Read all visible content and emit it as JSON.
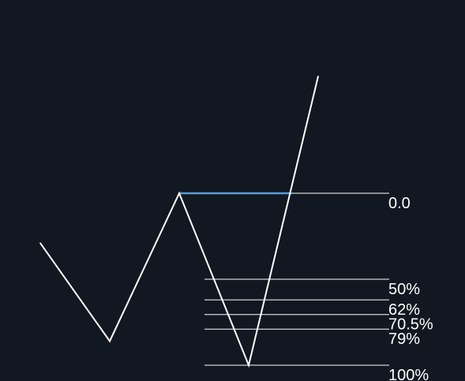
{
  "chart_data": {
    "type": "line",
    "series": [
      {
        "points": [
          {
            "x": 0,
            "y": 0.29
          },
          {
            "x": 1,
            "y": 0.86
          },
          {
            "x": 2,
            "y": 0.0
          },
          {
            "x": 3,
            "y": 1.0
          },
          {
            "x": 4,
            "y": -0.68
          }
        ],
        "color": "#ffffff"
      }
    ],
    "fibonacci": {
      "levels": [
        {
          "value": 0.0,
          "label": "0.0"
        },
        {
          "value": 0.5,
          "label": "50%"
        },
        {
          "value": 0.62,
          "label": "62%"
        },
        {
          "value": 0.705,
          "label": "70.5%"
        },
        {
          "value": 0.79,
          "label": "79%"
        },
        {
          "value": 1.0,
          "label": "100%"
        }
      ],
      "line_color": "#ffffff",
      "label_color": "#ffffff"
    },
    "highlight": {
      "level": 0.0,
      "x_from": 2,
      "x_to": 3.62,
      "color": "#5b9bd5"
    },
    "grid": false,
    "background": "#111821"
  }
}
